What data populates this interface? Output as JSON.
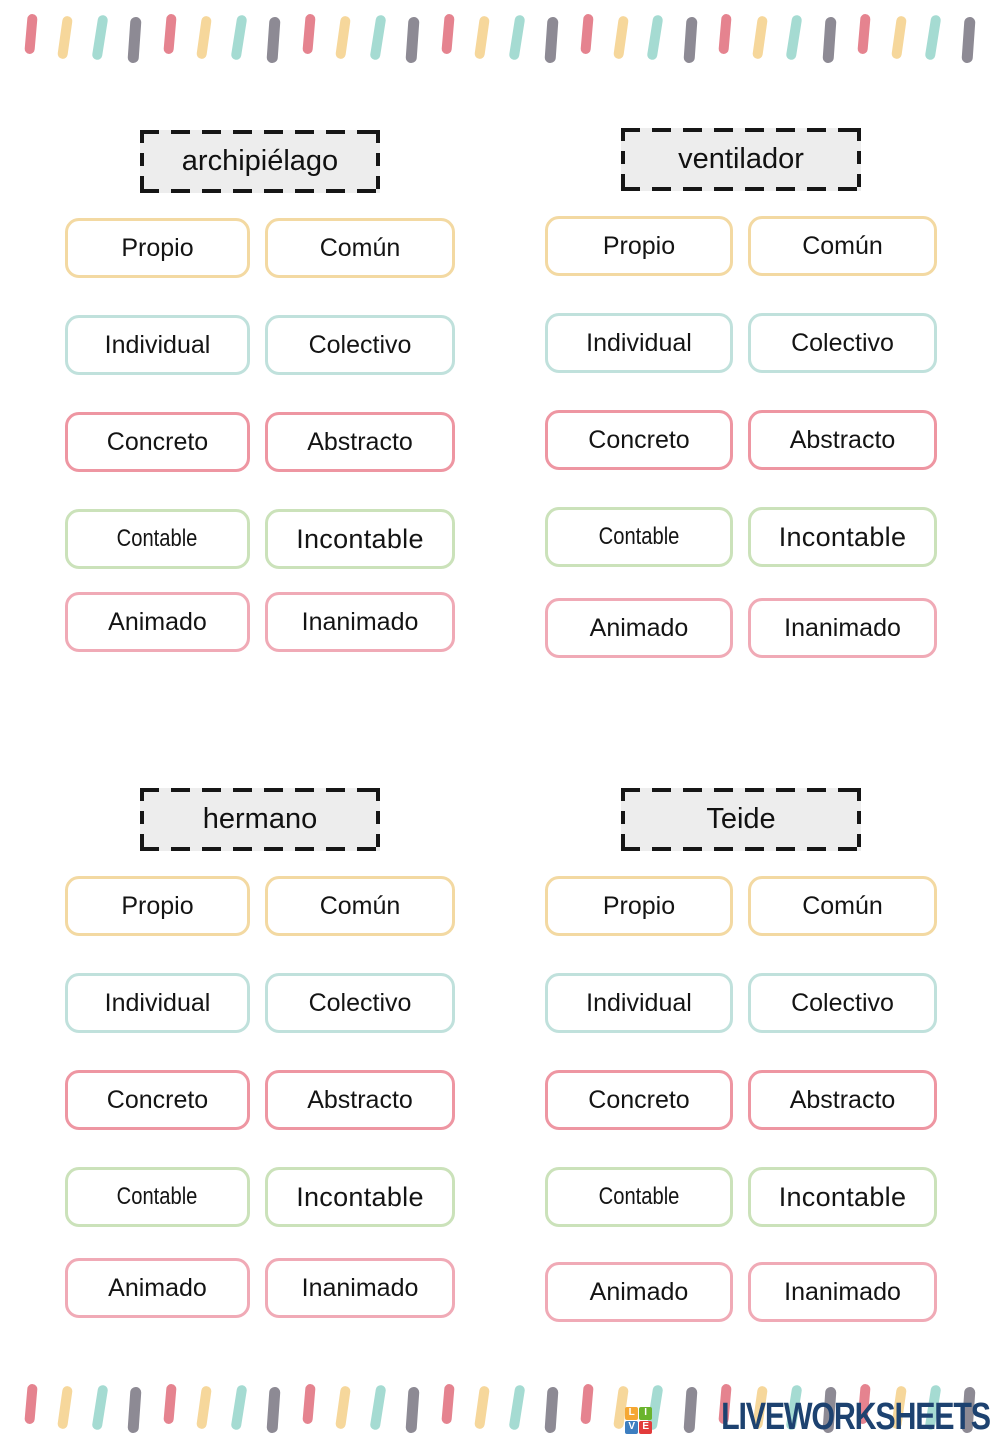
{
  "decor": {
    "top_dashes": [
      "#e5838f",
      "#f6d79b",
      "#a5dbd2",
      "#8d8a94",
      "#e5838f",
      "#f6d79b",
      "#a5dbd2",
      "#8d8a94",
      "#e5838f",
      "#f6d79b",
      "#a5dbd2",
      "#8d8a94",
      "#e5838f",
      "#f6d79b",
      "#a5dbd2",
      "#8d8a94",
      "#e5838f",
      "#f6d79b",
      "#a5dbd2",
      "#8d8a94",
      "#e5838f",
      "#f6d79b",
      "#a5dbd2",
      "#8d8a94",
      "#e5838f",
      "#f6d79b",
      "#a5dbd2",
      "#8d8a94"
    ],
    "bottom_dashes": [
      "#e5838f",
      "#f6d79b",
      "#a5dbd2",
      "#8d8a94",
      "#e5838f",
      "#f6d79b",
      "#a5dbd2",
      "#8d8a94",
      "#e5838f",
      "#f6d79b",
      "#a5dbd2",
      "#8d8a94",
      "#e5838f",
      "#f6d79b",
      "#a5dbd2",
      "#8d8a94",
      "#e5838f",
      "#f6d79b",
      "#a5dbd2",
      "#8d8a94",
      "#e5838f",
      "#f6d79b",
      "#a5dbd2",
      "#8d8a94",
      "#e5838f",
      "#f6d79b",
      "#a5dbd2",
      "#8d8a94"
    ]
  },
  "palette": {
    "yellow_border": "#f3d9a2",
    "teal_border": "#c0e1dc",
    "pink_border": "#ee96a2",
    "green_border": "#cbe2ba",
    "rose_border": "#f0aab6",
    "title_fill": "#ededed"
  },
  "quadrants": [
    {
      "title": "archipiélago",
      "chips": [
        {
          "name": "chip-propio",
          "label": "Propio",
          "border": "#f3d9a2"
        },
        {
          "name": "chip-comun",
          "label": "Común",
          "border": "#f3d9a2"
        },
        {
          "name": "chip-individual",
          "label": "Individual",
          "border": "#c0e1dc"
        },
        {
          "name": "chip-colectivo",
          "label": "Colectivo",
          "border": "#c0e1dc"
        },
        {
          "name": "chip-concreto",
          "label": "Concreto",
          "border": "#ee96a2"
        },
        {
          "name": "chip-abstracto",
          "label": "Abstracto",
          "border": "#ee96a2"
        },
        {
          "name": "chip-contable",
          "label": "Contable",
          "border": "#cbe2ba",
          "variant": "condensed"
        },
        {
          "name": "chip-incontable",
          "label": "Incontable",
          "border": "#cbe2ba",
          "variant": "wide"
        },
        {
          "name": "chip-animado",
          "label": "Animado",
          "border": "#f0aab6"
        },
        {
          "name": "chip-inanimado",
          "label": "Inanimado",
          "border": "#f0aab6"
        }
      ]
    },
    {
      "title": "ventilador",
      "chips": [
        {
          "name": "chip-propio",
          "label": "Propio",
          "border": "#f3d9a2"
        },
        {
          "name": "chip-comun",
          "label": "Común",
          "border": "#f3d9a2"
        },
        {
          "name": "chip-individual",
          "label": "Individual",
          "border": "#c0e1dc"
        },
        {
          "name": "chip-colectivo",
          "label": "Colectivo",
          "border": "#c0e1dc"
        },
        {
          "name": "chip-concreto",
          "label": "Concreto",
          "border": "#ee96a2"
        },
        {
          "name": "chip-abstracto",
          "label": "Abstracto",
          "border": "#ee96a2"
        },
        {
          "name": "chip-contable",
          "label": "Contable",
          "border": "#cbe2ba",
          "variant": "condensed"
        },
        {
          "name": "chip-incontable",
          "label": "Incontable",
          "border": "#cbe2ba",
          "variant": "wide"
        },
        {
          "name": "chip-animado",
          "label": "Animado",
          "border": "#f0aab6"
        },
        {
          "name": "chip-inanimado",
          "label": "Inanimado",
          "border": "#f0aab6"
        }
      ]
    },
    {
      "title": "hermano",
      "chips": [
        {
          "name": "chip-propio",
          "label": "Propio",
          "border": "#f3d9a2"
        },
        {
          "name": "chip-comun",
          "label": "Común",
          "border": "#f3d9a2"
        },
        {
          "name": "chip-individual",
          "label": "Individual",
          "border": "#c0e1dc"
        },
        {
          "name": "chip-colectivo",
          "label": "Colectivo",
          "border": "#c0e1dc"
        },
        {
          "name": "chip-concreto",
          "label": "Concreto",
          "border": "#ee96a2"
        },
        {
          "name": "chip-abstracto",
          "label": "Abstracto",
          "border": "#ee96a2"
        },
        {
          "name": "chip-contable",
          "label": "Contable",
          "border": "#cbe2ba",
          "variant": "condensed"
        },
        {
          "name": "chip-incontable",
          "label": "Incontable",
          "border": "#cbe2ba",
          "variant": "wide"
        },
        {
          "name": "chip-animado",
          "label": "Animado",
          "border": "#f0aab6"
        },
        {
          "name": "chip-inanimado",
          "label": "Inanimado",
          "border": "#f0aab6"
        }
      ]
    },
    {
      "title": "Teide",
      "chips": [
        {
          "name": "chip-propio",
          "label": "Propio",
          "border": "#f3d9a2"
        },
        {
          "name": "chip-comun",
          "label": "Común",
          "border": "#f3d9a2"
        },
        {
          "name": "chip-individual",
          "label": "Individual",
          "border": "#c0e1dc"
        },
        {
          "name": "chip-colectivo",
          "label": "Colectivo",
          "border": "#c0e1dc"
        },
        {
          "name": "chip-concreto",
          "label": "Concreto",
          "border": "#ee96a2"
        },
        {
          "name": "chip-abstracto",
          "label": "Abstracto",
          "border": "#ee96a2"
        },
        {
          "name": "chip-contable",
          "label": "Contable",
          "border": "#cbe2ba",
          "variant": "condensed"
        },
        {
          "name": "chip-incontable",
          "label": "Incontable",
          "border": "#cbe2ba",
          "variant": "wide"
        },
        {
          "name": "chip-animado",
          "label": "Animado",
          "border": "#f0aab6"
        },
        {
          "name": "chip-inanimado",
          "label": "Inanimado",
          "border": "#f0aab6"
        }
      ]
    }
  ],
  "logo": {
    "text": "LIVEWORKSHEETS",
    "text_color": "#1d4270",
    "tiles": [
      {
        "letter": "L",
        "color": "#f5a733"
      },
      {
        "letter": "I",
        "color": "#6ab42d"
      },
      {
        "letter": "V",
        "color": "#3d7ec0"
      },
      {
        "letter": "E",
        "color": "#e23b3b"
      }
    ]
  }
}
